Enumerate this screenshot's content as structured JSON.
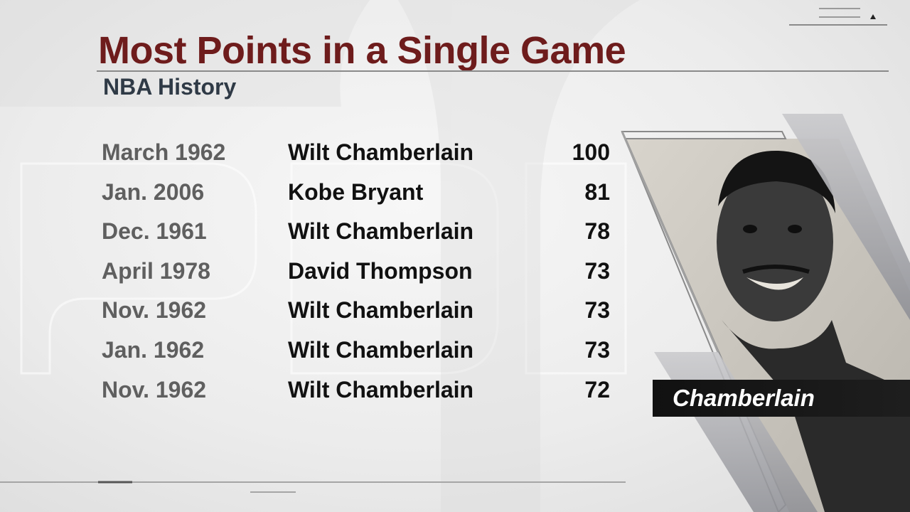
{
  "header": {
    "title": "Most Points in a Single Game",
    "subtitle": "NBA History"
  },
  "table": {
    "rows": [
      {
        "date": "March 1962",
        "player": "Wilt Chamberlain",
        "points": "100"
      },
      {
        "date": "Jan. 2006",
        "player": "Kobe Bryant",
        "points": "81"
      },
      {
        "date": "Dec. 1961",
        "player": "Wilt Chamberlain",
        "points": "78"
      },
      {
        "date": "April 1978",
        "player": "David Thompson",
        "points": "73"
      },
      {
        "date": "Nov. 1962",
        "player": "Wilt Chamberlain",
        "points": "73"
      },
      {
        "date": "Jan. 1962",
        "player": "Wilt Chamberlain",
        "points": "73"
      },
      {
        "date": "Nov. 1962",
        "player": "Wilt Chamberlain",
        "points": "72"
      }
    ]
  },
  "photo": {
    "caption": "Chamberlain"
  },
  "colors": {
    "title": "#6e1c1c",
    "subtitle": "#2f3a46",
    "date": "#5f5f5f",
    "text": "#111111",
    "caption_bg": "#111111"
  }
}
